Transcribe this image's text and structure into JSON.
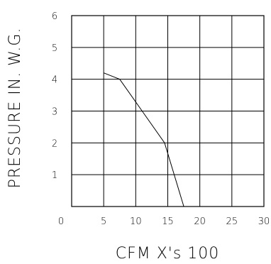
{
  "chart_data": {
    "type": "line",
    "xlabel": "CFM X's 100",
    "ylabel": "PRESSURE IN. W.G.",
    "xlim": [
      0,
      30
    ],
    "ylim": [
      0,
      6
    ],
    "x_ticks": [
      "0",
      "5",
      "10",
      "15",
      "20",
      "25",
      "30"
    ],
    "y_ticks": [
      "0",
      "1",
      "2",
      "3",
      "4",
      "5",
      "6"
    ],
    "x_tick_values": [
      0,
      5,
      10,
      15,
      20,
      25,
      30
    ],
    "y_tick_values": [
      0,
      1,
      2,
      3,
      4,
      5,
      6
    ],
    "grid": true,
    "series": [
      {
        "x": [
          5,
          7.5,
          11,
          14.5,
          17.5
        ],
        "y": [
          4.2,
          4.0,
          3.0,
          2.0,
          0.0
        ]
      }
    ]
  }
}
